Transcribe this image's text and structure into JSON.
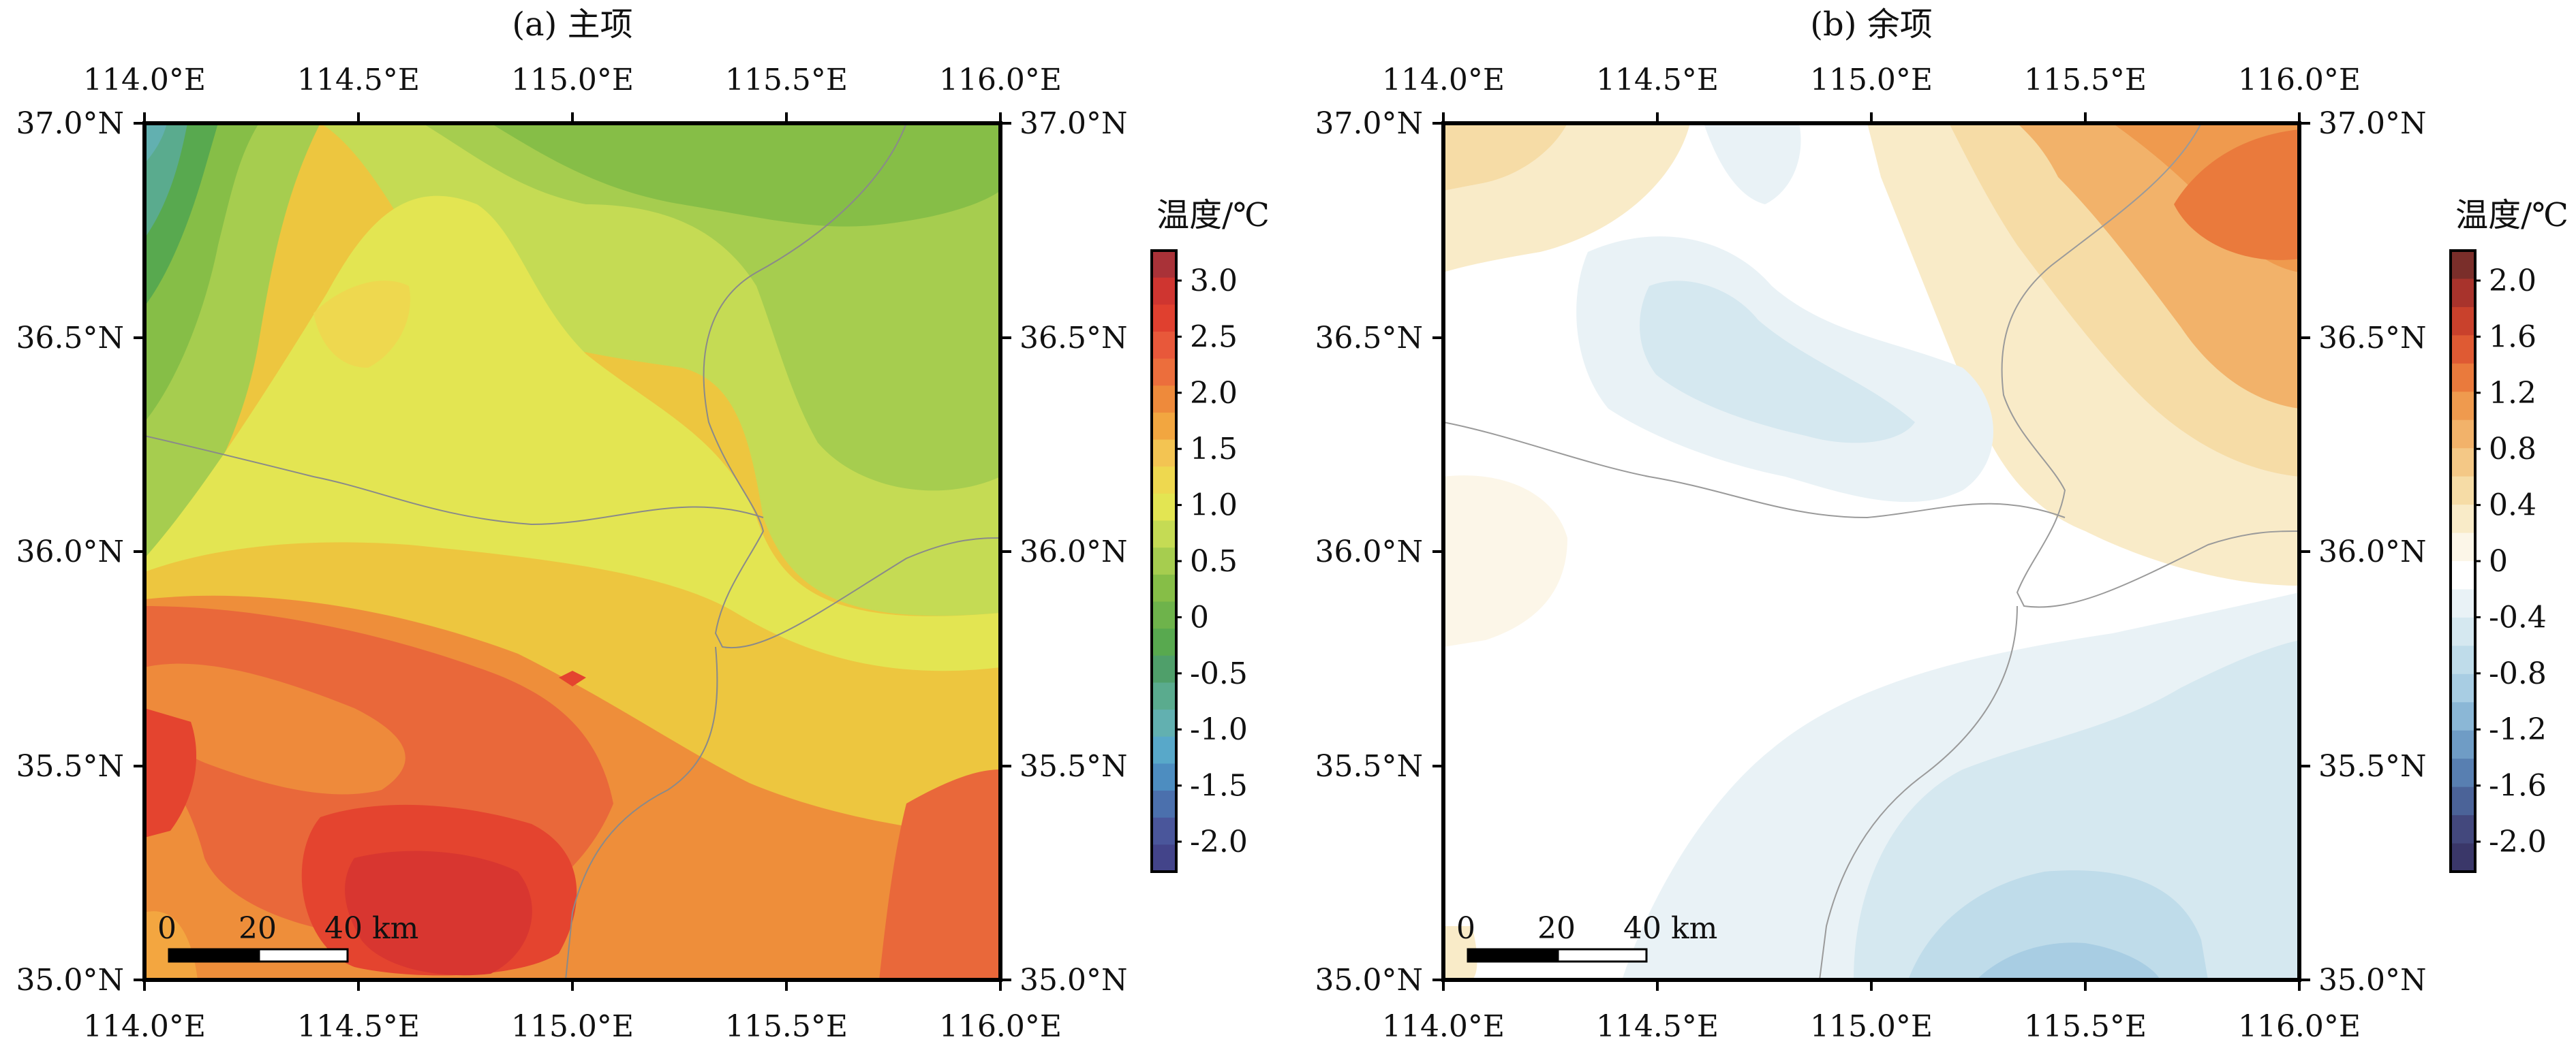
{
  "panels": [
    {
      "id": "a",
      "title": "(a) 主项",
      "top_ticks": [
        "114.0°E",
        "114.5°E",
        "115.0°E",
        "115.5°E",
        "116.0°E"
      ],
      "bottom_ticks": [
        "114.0°E",
        "114.5°E",
        "115.0°E",
        "115.5°E",
        "116.0°E"
      ],
      "left_ticks": [
        "37.0°N",
        "36.5°N",
        "36.0°N",
        "35.5°N",
        "35.0°N"
      ],
      "right_ticks": [
        "37.0°N",
        "36.5°N",
        "36.0°N",
        "35.5°N",
        "35.0°N"
      ],
      "scalebar": {
        "labels": [
          "0",
          "20",
          "40 km"
        ]
      },
      "colorbar": {
        "title": "温度/℃",
        "labels": [
          "3.0",
          "2.5",
          "2.0",
          "1.5",
          "1.0",
          "0.5",
          "0",
          "-0.5",
          "-1.0",
          "-1.5",
          "-2.0"
        ],
        "colors": [
          "#a93238",
          "#cf3530",
          "#e0402f",
          "#e8583a",
          "#ec6e3c",
          "#ee8a3b",
          "#f2a640",
          "#f3c452",
          "#eed84f",
          "#e3e552",
          "#c5db54",
          "#a6cd4f",
          "#86be47",
          "#6eb34b",
          "#58a94f",
          "#4f9f6a",
          "#5aab8e",
          "#62b0b0",
          "#58a8c9",
          "#4d8dc0",
          "#4b70ad",
          "#4a569b",
          "#43448a"
        ]
      }
    },
    {
      "id": "b",
      "title": "(b) 余项",
      "top_ticks": [
        "114.0°E",
        "114.5°E",
        "115.0°E",
        "115.5°E",
        "116.0°E"
      ],
      "bottom_ticks": [
        "114.0°E",
        "114.5°E",
        "115.0°E",
        "115.5°E",
        "116.0°E"
      ],
      "left_ticks": [
        "37.0°N",
        "36.5°N",
        "36.0°N",
        "35.5°N",
        "35.0°N"
      ],
      "right_ticks": [
        "37.0°N",
        "36.5°N",
        "36.0°N",
        "35.5°N",
        "35.0°N"
      ],
      "scalebar": {
        "labels": [
          "0",
          "20",
          "40 km"
        ]
      },
      "colorbar": {
        "title": "温度/℃",
        "labels": [
          "2.0",
          "1.6",
          "1.2",
          "0.8",
          "0.4",
          "0",
          "-0.4",
          "-0.8",
          "-1.2",
          "-1.6",
          "-2.0"
        ],
        "colors": [
          "#7a2e2a",
          "#a8332c",
          "#c9412c",
          "#df5a33",
          "#ea7a3c",
          "#ef9a4e",
          "#f2b26a",
          "#f4c886",
          "#f6dca6",
          "#f9ebc8",
          "#fcf6e8",
          "#ffffff",
          "#e9f2f6",
          "#d5e8f0",
          "#bfdcea",
          "#a8cde3",
          "#8bb7d6",
          "#6f9cc5",
          "#587fb1",
          "#4b6398",
          "#43487d",
          "#3a3769"
        ]
      }
    }
  ]
}
